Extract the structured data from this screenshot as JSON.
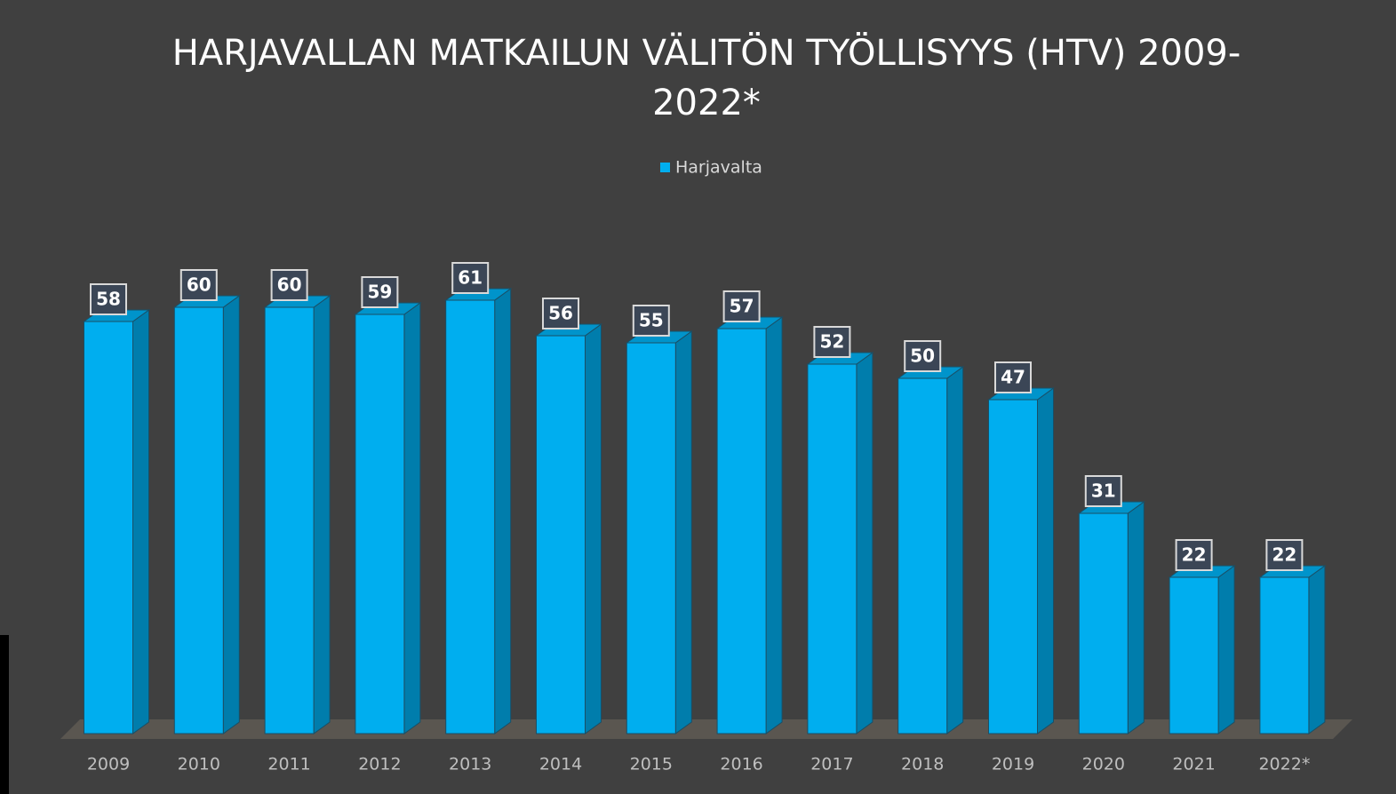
{
  "chart_data": {
    "type": "bar3d",
    "title": [
      "HARJAVALLAN MATKAILUN VÄLITÖN TYÖLLISYYS (HTV) 2009-",
      "2022*"
    ],
    "legend": "top",
    "series": [
      {
        "name": "Harjavalta",
        "color": "#00aeef",
        "values": [
          58,
          60,
          60,
          59,
          61,
          56,
          55,
          57,
          52,
          50,
          47,
          31,
          22,
          22
        ]
      }
    ],
    "categories": [
      "2009",
      "2010",
      "2011",
      "2012",
      "2013",
      "2014",
      "2015",
      "2016",
      "2017",
      "2018",
      "2019",
      "2020",
      "2021",
      "2022*"
    ]
  }
}
